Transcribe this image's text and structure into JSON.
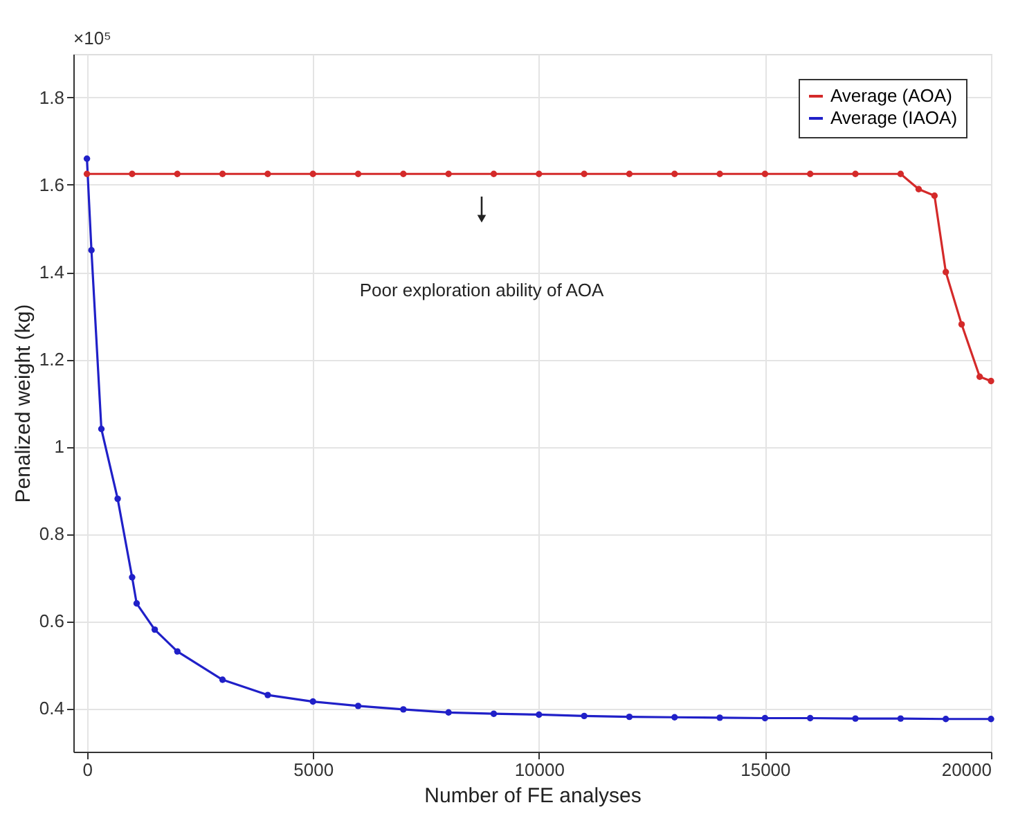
{
  "chart_data": {
    "type": "line",
    "xlabel": "Number of FE analyses",
    "ylabel": "Penalized weight (kg)",
    "xlim": [
      -300,
      20000
    ],
    "xticks": [
      0,
      5000,
      10000,
      15000,
      20000
    ],
    "ylim": [
      0.3,
      1.9
    ],
    "yticks": [
      0.4,
      0.6,
      0.8,
      {
        "value": 1.0,
        "label": "1"
      },
      1.2,
      1.4,
      1.6,
      1.8
    ],
    "grid": true,
    "legend": "top right",
    "marker": "circle",
    "line_style": "solid",
    "annotations": [
      "×10⁵",
      "Poor exploration ability of AOA"
    ],
    "series": [
      {
        "name": "Average (AOA)",
        "color": "#d42a2a",
        "x": [
          0,
          1000,
          2000,
          3000,
          4000,
          5000,
          6000,
          7000,
          8000,
          9000,
          10000,
          11000,
          12000,
          13000,
          14000,
          15000,
          16000,
          17000,
          18000,
          18400,
          18750,
          19000,
          19350,
          19750,
          20000
        ],
        "values": [
          1.625,
          1.625,
          1.625,
          1.625,
          1.625,
          1.625,
          1.625,
          1.625,
          1.625,
          1.625,
          1.625,
          1.625,
          1.625,
          1.625,
          1.625,
          1.625,
          1.625,
          1.625,
          1.625,
          1.59,
          1.575,
          1.4,
          1.28,
          1.16,
          1.15
        ]
      },
      {
        "name": "Average (IAOA)",
        "color": "#2020c8",
        "x": [
          0,
          100,
          320,
          680,
          1000,
          1100,
          1500,
          2000,
          3000,
          4000,
          5000,
          6000,
          7000,
          8000,
          9000,
          10000,
          11000,
          12000,
          13000,
          14000,
          15000,
          16000,
          17000,
          18000,
          19000,
          20000
        ],
        "values": [
          1.66,
          1.45,
          1.04,
          0.88,
          0.7,
          0.64,
          0.58,
          0.53,
          0.465,
          0.43,
          0.415,
          0.405,
          0.397,
          0.39,
          0.387,
          0.385,
          0.382,
          0.38,
          0.379,
          0.378,
          0.377,
          0.377,
          0.376,
          0.376,
          0.375,
          0.375
        ]
      }
    ]
  }
}
